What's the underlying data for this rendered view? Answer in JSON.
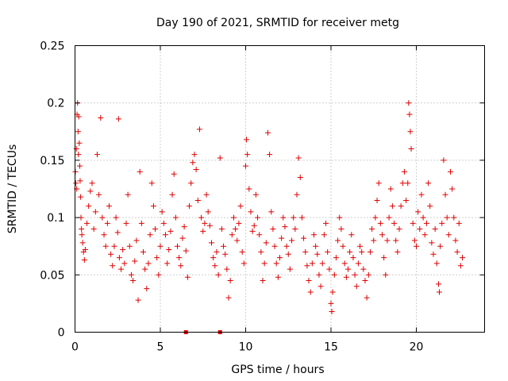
{
  "chart_data": {
    "type": "scatter",
    "title": "Day 190 of 2021, SRMTID for receiver metg",
    "xlabel": "GPS time / hours",
    "ylabel": "SRMTID / TECUs",
    "xlim": [
      0,
      24
    ],
    "ylim": [
      0,
      0.25
    ],
    "x_ticks": [
      0,
      5,
      10,
      15,
      20
    ],
    "x_tick_labels": [
      "0",
      "5",
      "10",
      "15",
      "20"
    ],
    "y_ticks": [
      0,
      0.05,
      0.1,
      0.15,
      0.2,
      0.25
    ],
    "y_tick_labels": [
      "0",
      "0.05",
      "0.1",
      "0.15",
      "0.2",
      "0.25"
    ],
    "grid": true,
    "legend": "none",
    "marker": "plus",
    "series_color": "#e00000",
    "data_span_hours": [
      0,
      22.7
    ],
    "series": [
      {
        "name": "SRMTID",
        "points": [
          [
            0.02,
            0.14
          ],
          [
            0.05,
            0.13
          ],
          [
            0.08,
            0.16
          ],
          [
            0.1,
            0.125
          ],
          [
            0.12,
            0.19
          ],
          [
            0.15,
            0.2
          ],
          [
            0.18,
            0.175
          ],
          [
            0.2,
            0.155
          ],
          [
            0.22,
            0.188
          ],
          [
            0.25,
            0.165
          ],
          [
            0.28,
            0.145
          ],
          [
            0.3,
            0.132
          ],
          [
            0.33,
            0.118
          ],
          [
            0.35,
            0.1
          ],
          [
            0.38,
            0.09
          ],
          [
            0.4,
            0.085
          ],
          [
            0.45,
            0.078
          ],
          [
            0.5,
            0.07
          ],
          [
            0.55,
            0.063
          ],
          [
            0.6,
            0.072
          ],
          [
            0.7,
            0.095
          ],
          [
            0.8,
            0.11
          ],
          [
            0.9,
            0.123
          ],
          [
            1.0,
            0.13
          ],
          [
            1.1,
            0.09
          ],
          [
            1.2,
            0.105
          ],
          [
            1.3,
            0.155
          ],
          [
            1.4,
            0.12
          ],
          [
            1.5,
            0.187
          ],
          [
            1.6,
            0.1
          ],
          [
            1.7,
            0.085
          ],
          [
            1.8,
            0.075
          ],
          [
            1.9,
            0.095
          ],
          [
            2.0,
            0.11
          ],
          [
            2.1,
            0.068
          ],
          [
            2.2,
            0.058
          ],
          [
            2.3,
            0.075
          ],
          [
            2.4,
            0.1
          ],
          [
            2.5,
            0.087
          ],
          [
            2.55,
            0.186
          ],
          [
            2.6,
            0.065
          ],
          [
            2.7,
            0.055
          ],
          [
            2.8,
            0.072
          ],
          [
            2.9,
            0.06
          ],
          [
            3.0,
            0.095
          ],
          [
            3.1,
            0.12
          ],
          [
            3.2,
            0.075
          ],
          [
            3.3,
            0.05
          ],
          [
            3.4,
            0.045
          ],
          [
            3.5,
            0.062
          ],
          [
            3.6,
            0.08
          ],
          [
            3.7,
            0.028
          ],
          [
            3.8,
            0.14
          ],
          [
            3.9,
            0.095
          ],
          [
            4.0,
            0.07
          ],
          [
            4.1,
            0.055
          ],
          [
            4.2,
            0.038
          ],
          [
            4.3,
            0.06
          ],
          [
            4.4,
            0.085
          ],
          [
            4.5,
            0.13
          ],
          [
            4.6,
            0.11
          ],
          [
            4.7,
            0.09
          ],
          [
            4.8,
            0.065
          ],
          [
            4.9,
            0.05
          ],
          [
            5.0,
            0.075
          ],
          [
            5.1,
            0.105
          ],
          [
            5.2,
            0.095
          ],
          [
            5.3,
            0.085
          ],
          [
            5.4,
            0.06
          ],
          [
            5.5,
            0.072
          ],
          [
            5.6,
            0.088
          ],
          [
            5.7,
            0.12
          ],
          [
            5.8,
            0.138
          ],
          [
            5.9,
            0.1
          ],
          [
            6.0,
            0.075
          ],
          [
            6.1,
            0.065
          ],
          [
            6.2,
            0.058
          ],
          [
            6.3,
            0.082
          ],
          [
            6.4,
            0.092
          ],
          [
            6.5,
            0.071
          ],
          [
            6.6,
            0.048
          ],
          [
            6.7,
            0.11
          ],
          [
            6.8,
            0.13
          ],
          [
            6.9,
            0.148
          ],
          [
            7.0,
            0.155
          ],
          [
            7.1,
            0.142
          ],
          [
            7.2,
            0.115
          ],
          [
            7.3,
            0.177
          ],
          [
            7.4,
            0.1
          ],
          [
            7.5,
            0.088
          ],
          [
            7.6,
            0.095
          ],
          [
            7.7,
            0.12
          ],
          [
            7.8,
            0.105
          ],
          [
            7.9,
            0.093
          ],
          [
            8.0,
            0.078
          ],
          [
            8.1,
            0.065
          ],
          [
            8.2,
            0.058
          ],
          [
            8.3,
            0.07
          ],
          [
            8.4,
            0.05
          ],
          [
            8.5,
            0.152
          ],
          [
            8.6,
            0.09
          ],
          [
            8.7,
            0.075
          ],
          [
            8.8,
            0.068
          ],
          [
            8.9,
            0.055
          ],
          [
            9.0,
            0.03
          ],
          [
            9.1,
            0.045
          ],
          [
            9.2,
            0.085
          ],
          [
            9.3,
            0.1
          ],
          [
            9.4,
            0.09
          ],
          [
            9.5,
            0.08
          ],
          [
            9.6,
            0.095
          ],
          [
            9.7,
            0.11
          ],
          [
            9.8,
            0.07
          ],
          [
            9.9,
            0.06
          ],
          [
            10.0,
            0.145
          ],
          [
            10.05,
            0.168
          ],
          [
            10.1,
            0.155
          ],
          [
            10.2,
            0.125
          ],
          [
            10.3,
            0.105
          ],
          [
            10.4,
            0.088
          ],
          [
            10.5,
            0.093
          ],
          [
            10.6,
            0.12
          ],
          [
            10.7,
            0.1
          ],
          [
            10.8,
            0.085
          ],
          [
            10.9,
            0.07
          ],
          [
            11.0,
            0.045
          ],
          [
            11.1,
            0.06
          ],
          [
            11.2,
            0.078
          ],
          [
            11.3,
            0.174
          ],
          [
            11.4,
            0.155
          ],
          [
            11.5,
            0.105
          ],
          [
            11.6,
            0.09
          ],
          [
            11.7,
            0.075
          ],
          [
            11.8,
            0.06
          ],
          [
            11.9,
            0.048
          ],
          [
            12.0,
            0.065
          ],
          [
            12.1,
            0.082
          ],
          [
            12.2,
            0.1
          ],
          [
            12.3,
            0.092
          ],
          [
            12.4,
            0.075
          ],
          [
            12.5,
            0.068
          ],
          [
            12.6,
            0.055
          ],
          [
            12.7,
            0.08
          ],
          [
            12.8,
            0.1
          ],
          [
            12.9,
            0.09
          ],
          [
            13.0,
            0.12
          ],
          [
            13.1,
            0.152
          ],
          [
            13.2,
            0.135
          ],
          [
            13.3,
            0.1
          ],
          [
            13.4,
            0.082
          ],
          [
            13.5,
            0.07
          ],
          [
            13.6,
            0.058
          ],
          [
            13.7,
            0.045
          ],
          [
            13.8,
            0.035
          ],
          [
            13.9,
            0.06
          ],
          [
            14.0,
            0.085
          ],
          [
            14.1,
            0.075
          ],
          [
            14.2,
            0.068
          ],
          [
            14.3,
            0.05
          ],
          [
            14.4,
            0.04
          ],
          [
            14.5,
            0.06
          ],
          [
            14.6,
            0.085
          ],
          [
            14.7,
            0.095
          ],
          [
            14.8,
            0.07
          ],
          [
            14.9,
            0.055
          ],
          [
            15.0,
            0.025
          ],
          [
            15.05,
            0.018
          ],
          [
            15.1,
            0.035
          ],
          [
            15.2,
            0.05
          ],
          [
            15.3,
            0.065
          ],
          [
            15.4,
            0.08
          ],
          [
            15.5,
            0.1
          ],
          [
            15.6,
            0.09
          ],
          [
            15.7,
            0.075
          ],
          [
            15.8,
            0.06
          ],
          [
            15.9,
            0.048
          ],
          [
            16.0,
            0.055
          ],
          [
            16.1,
            0.07
          ],
          [
            16.2,
            0.085
          ],
          [
            16.3,
            0.065
          ],
          [
            16.4,
            0.05
          ],
          [
            16.5,
            0.04
          ],
          [
            16.6,
            0.06
          ],
          [
            16.7,
            0.075
          ],
          [
            16.8,
            0.07
          ],
          [
            16.9,
            0.055
          ],
          [
            17.0,
            0.045
          ],
          [
            17.1,
            0.03
          ],
          [
            17.2,
            0.05
          ],
          [
            17.3,
            0.07
          ],
          [
            17.4,
            0.09
          ],
          [
            17.5,
            0.08
          ],
          [
            17.6,
            0.1
          ],
          [
            17.7,
            0.115
          ],
          [
            17.8,
            0.13
          ],
          [
            17.9,
            0.095
          ],
          [
            18.0,
            0.085
          ],
          [
            18.1,
            0.065
          ],
          [
            18.2,
            0.05
          ],
          [
            18.3,
            0.08
          ],
          [
            18.4,
            0.1
          ],
          [
            18.5,
            0.125
          ],
          [
            18.6,
            0.11
          ],
          [
            18.7,
            0.095
          ],
          [
            18.8,
            0.08
          ],
          [
            18.9,
            0.07
          ],
          [
            19.0,
            0.09
          ],
          [
            19.1,
            0.11
          ],
          [
            19.2,
            0.13
          ],
          [
            19.3,
            0.14
          ],
          [
            19.4,
            0.115
          ],
          [
            19.5,
            0.13
          ],
          [
            19.55,
            0.2
          ],
          [
            19.6,
            0.19
          ],
          [
            19.65,
            0.175
          ],
          [
            19.7,
            0.16
          ],
          [
            19.8,
            0.095
          ],
          [
            19.9,
            0.08
          ],
          [
            20.0,
            0.075
          ],
          [
            20.1,
            0.105
          ],
          [
            20.2,
            0.09
          ],
          [
            20.3,
            0.12
          ],
          [
            20.4,
            0.1
          ],
          [
            20.5,
            0.085
          ],
          [
            20.6,
            0.095
          ],
          [
            20.7,
            0.13
          ],
          [
            20.8,
            0.11
          ],
          [
            20.9,
            0.078
          ],
          [
            21.0,
            0.068
          ],
          [
            21.1,
            0.09
          ],
          [
            21.2,
            0.06
          ],
          [
            21.3,
            0.042
          ],
          [
            21.35,
            0.035
          ],
          [
            21.4,
            0.075
          ],
          [
            21.5,
            0.095
          ],
          [
            21.6,
            0.15
          ],
          [
            21.7,
            0.12
          ],
          [
            21.8,
            0.1
          ],
          [
            21.9,
            0.085
          ],
          [
            22.0,
            0.14
          ],
          [
            22.1,
            0.125
          ],
          [
            22.2,
            0.1
          ],
          [
            22.3,
            0.08
          ],
          [
            22.4,
            0.07
          ],
          [
            22.5,
            0.095
          ],
          [
            22.6,
            0.058
          ],
          [
            22.7,
            0.065
          ]
        ]
      }
    ],
    "zero_markers": [
      6.5,
      8.5
    ]
  }
}
